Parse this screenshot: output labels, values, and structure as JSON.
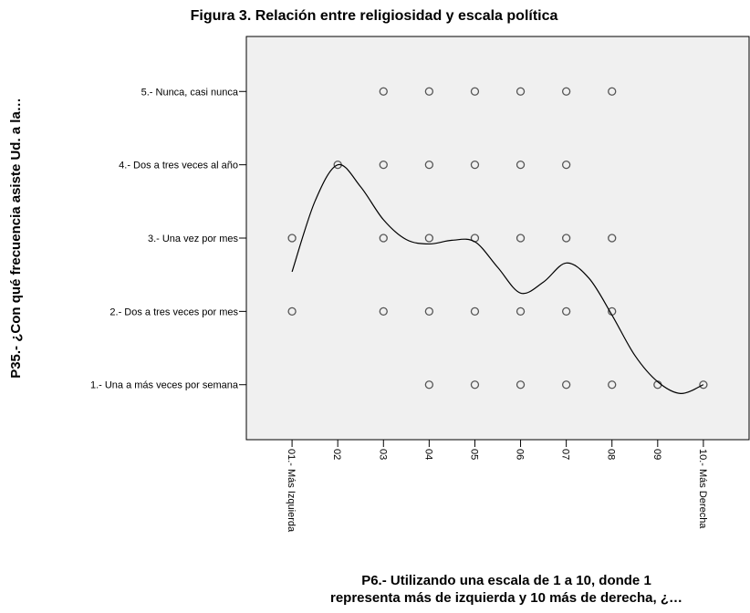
{
  "chart_data": {
    "type": "scatter",
    "title": "Figura 3. Relación entre religiosidad y escala política",
    "x_label": [
      "P6.- Utilizando una escala de 1 a 10, donde 1",
      "representa más de izquierda  y 10 más de derecha, ¿…"
    ],
    "y_label": "P35.- ¿Con qué frecuencia asiste Ud. a la…",
    "xlim": [
      0,
      11
    ],
    "ylim": [
      0.25,
      5.75
    ],
    "xticks": [
      {
        "value": 1,
        "label": "01.- Más Izquierda"
      },
      {
        "value": 2,
        "label": "02"
      },
      {
        "value": 3,
        "label": "03"
      },
      {
        "value": 4,
        "label": "04"
      },
      {
        "value": 5,
        "label": "05"
      },
      {
        "value": 6,
        "label": "06"
      },
      {
        "value": 7,
        "label": "07"
      },
      {
        "value": 8,
        "label": "08"
      },
      {
        "value": 9,
        "label": "09"
      },
      {
        "value": 10,
        "label": "10.- Más Derecha"
      }
    ],
    "yticks": [
      {
        "value": 1,
        "label": "1.- Una a más veces por semana"
      },
      {
        "value": 2,
        "label": "2.- Dos a tres veces por mes"
      },
      {
        "value": 3,
        "label": "3.- Una vez por mes"
      },
      {
        "value": 4,
        "label": "4.- Dos a tres veces al año"
      },
      {
        "value": 5,
        "label": "5.- Nunca, casi nunca"
      }
    ],
    "marker_color": "#555555",
    "line_color": "#000000",
    "background": "#f0f0f0",
    "points": {
      "x": [
        3,
        4,
        5,
        6,
        7,
        8,
        2,
        3,
        4,
        5,
        6,
        7,
        1,
        3,
        4,
        5,
        6,
        7,
        8,
        1,
        3,
        4,
        5,
        6,
        7,
        8,
        4,
        5,
        6,
        7,
        8,
        9,
        10
      ],
      "y": [
        5,
        5,
        5,
        5,
        5,
        5,
        4,
        4,
        4,
        4,
        4,
        4,
        3,
        3,
        3,
        3,
        3,
        3,
        3,
        2,
        2,
        2,
        2,
        2,
        2,
        2,
        1,
        1,
        1,
        1,
        1,
        1,
        1
      ]
    },
    "fit_line": {
      "x": [
        1,
        1.5,
        2,
        2.5,
        3,
        3.5,
        4,
        4.5,
        5,
        5.5,
        6,
        6.5,
        7,
        7.5,
        8,
        8.5,
        9,
        9.5,
        10
      ],
      "y": [
        2.54,
        3.5,
        4.0,
        3.7,
        3.25,
        2.98,
        2.92,
        2.97,
        2.95,
        2.6,
        2.25,
        2.4,
        2.66,
        2.45,
        1.95,
        1.4,
        1.04,
        0.88,
        1.0
      ]
    }
  }
}
